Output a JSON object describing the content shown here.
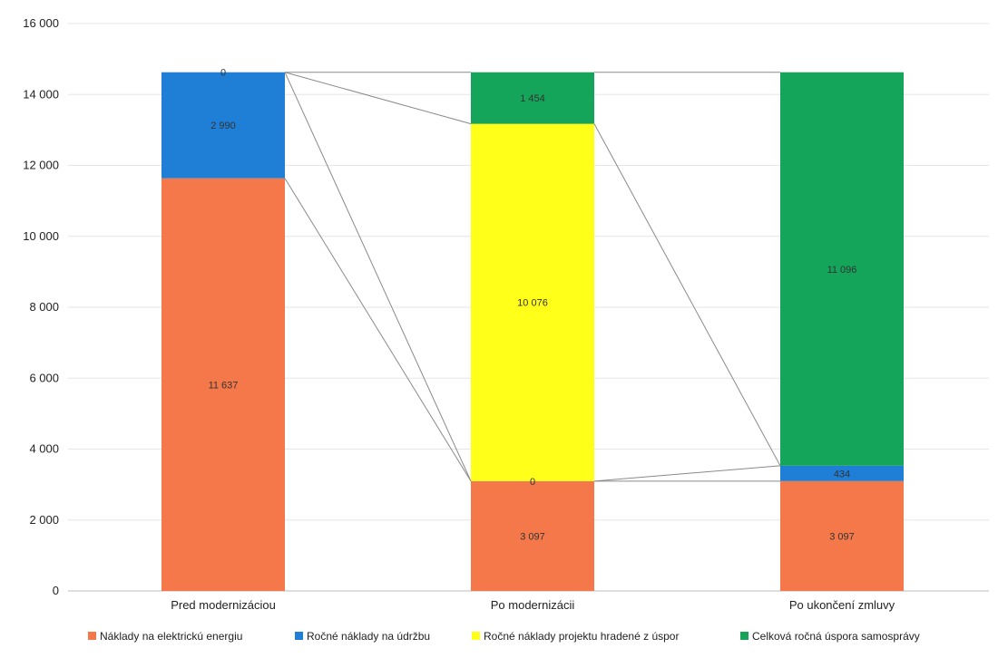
{
  "chart_data": {
    "type": "bar",
    "stacked": true,
    "title": "",
    "xlabel": "",
    "ylabel": "",
    "ylim": [
      0,
      16000
    ],
    "yticks": [
      0,
      2000,
      4000,
      6000,
      8000,
      10000,
      12000,
      14000,
      16000
    ],
    "ytick_labels": [
      "0",
      "2 000",
      "4 000",
      "6 000",
      "8 000",
      "10 000",
      "12 000",
      "14 000",
      "16 000"
    ],
    "grid": true,
    "legend_position": "bottom",
    "categories": [
      "Pred modernizáciou",
      "Po modernizácii",
      "Po ukončení zmluvy"
    ],
    "series": [
      {
        "name": "Náklady na elektrickú energiu",
        "color": "#f4784a",
        "values": [
          11637,
          3097,
          3097
        ],
        "labels": [
          "11 637",
          "3 097",
          "3 097"
        ]
      },
      {
        "name": "Ročné náklady na údržbu",
        "color": "#1f7fd6",
        "values": [
          2990,
          0,
          434
        ],
        "labels": [
          "2 990",
          "0",
          "434"
        ]
      },
      {
        "name": "Ročné náklady projektu hradené z úspor",
        "color": "#ffff1a",
        "values": [
          0,
          10076,
          0
        ],
        "labels": [
          "0",
          "10 076",
          ""
        ]
      },
      {
        "name": "Celková ročná úspora samosprávy",
        "color": "#14a45a",
        "values": [
          0,
          1454,
          11096
        ],
        "labels": [
          "",
          "1 454",
          "11 096"
        ]
      }
    ]
  }
}
